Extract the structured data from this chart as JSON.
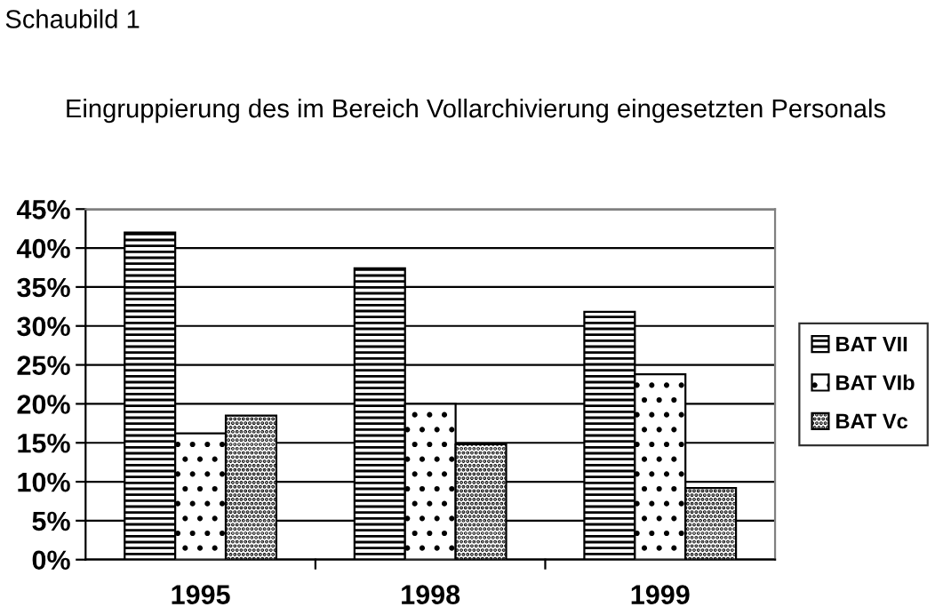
{
  "chart_data": {
    "type": "bar",
    "title": "Eingruppierung des im Bereich Vollarchivierung eingesetzten Personals",
    "annotations": [
      "Schaubild 1"
    ],
    "categories": [
      "1995",
      "1998",
      "1999"
    ],
    "series": [
      {
        "name": "BAT VII",
        "color": "#000000",
        "values": [
          42.0,
          37.4,
          31.8
        ]
      },
      {
        "name": "BAT VIb",
        "color": "#000000",
        "values": [
          16.2,
          20.0,
          23.8
        ]
      },
      {
        "name": "BAT Vc",
        "color": "#000000",
        "values": [
          18.5,
          14.8,
          9.2
        ]
      }
    ],
    "ylim": [
      0,
      45
    ],
    "yticks": [
      {
        "value": 0,
        "label": "0%"
      },
      {
        "value": 5,
        "label": "5%"
      },
      {
        "value": 10,
        "label": "10%"
      },
      {
        "value": 15,
        "label": "15%"
      },
      {
        "value": 20,
        "label": "20%"
      },
      {
        "value": 25,
        "label": "25%"
      },
      {
        "value": 30,
        "label": "30%"
      },
      {
        "value": 35,
        "label": "35%"
      },
      {
        "value": 40,
        "label": "40%"
      },
      {
        "value": 45,
        "label": "45%"
      }
    ],
    "grid": "y",
    "legend": "right"
  }
}
